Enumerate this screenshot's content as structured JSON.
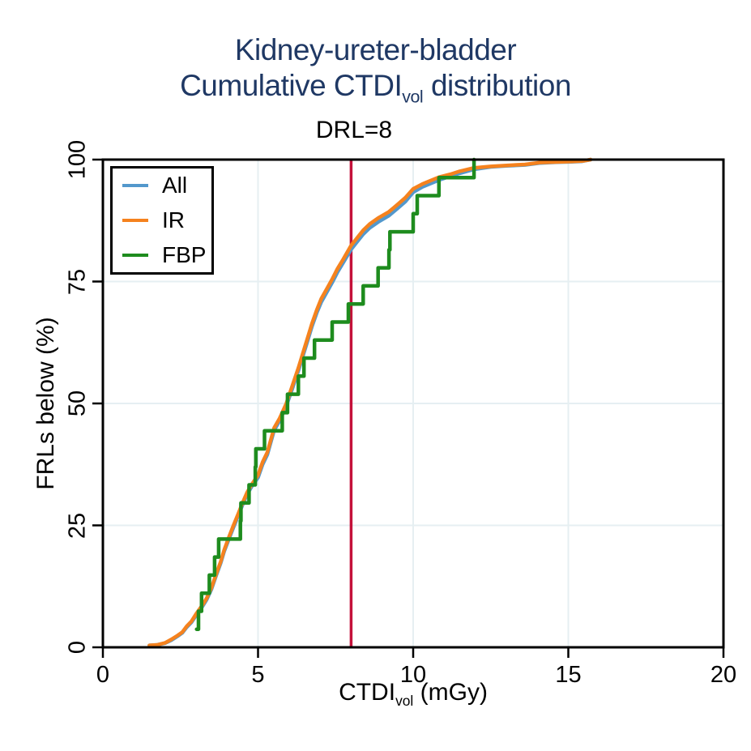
{
  "chart_data": {
    "type": "line",
    "title_line1": "Kidney-ureter-bladder",
    "title2_pre": "Cumulative CTDI",
    "title2_sub": "vol",
    "title2_post": " distribution",
    "ylabel": "FRLs below (%)",
    "xlabel_pre": "CTDI",
    "xlabel_sub": "vol",
    "xlabel_post": " (mGy)",
    "xlim": [
      0,
      20
    ],
    "ylim": [
      0,
      100
    ],
    "x_ticks": [
      0,
      5,
      10,
      15,
      20
    ],
    "y_ticks": [
      0,
      25,
      50,
      75,
      100
    ],
    "grid": true,
    "legend_position": "top-left",
    "reference_line": {
      "x": 8,
      "label": "DRL=8",
      "color": "#c4113a"
    },
    "colors": {
      "title": "#1f3864",
      "grid": "#e6eff2",
      "axis": "#000000",
      "all": "#5398cc",
      "ir": "#f5821e",
      "fbp": "#1e8c1e",
      "reference": "#c4113a"
    },
    "series": [
      {
        "name": "All",
        "color": "#5398cc",
        "style": "line",
        "points": [
          [
            1.5,
            0.4
          ],
          [
            1.75,
            0.5
          ],
          [
            2.0,
            0.85
          ],
          [
            2.2,
            1.45
          ],
          [
            2.4,
            2.25
          ],
          [
            2.56,
            2.95
          ],
          [
            2.7,
            4.1
          ],
          [
            2.85,
            5.1
          ],
          [
            3.0,
            6.5
          ],
          [
            3.2,
            8.3
          ],
          [
            3.34,
            9.7
          ],
          [
            3.5,
            11.9
          ],
          [
            3.65,
            14.7
          ],
          [
            3.8,
            17.3
          ],
          [
            3.91,
            19.7
          ],
          [
            4.05,
            22.0
          ],
          [
            4.21,
            24.6
          ],
          [
            4.35,
            26.8
          ],
          [
            4.5,
            29.2
          ],
          [
            4.65,
            31.4
          ],
          [
            4.8,
            33.0
          ],
          [
            5.0,
            34.8
          ],
          [
            5.15,
            37.5
          ],
          [
            5.3,
            39.5
          ],
          [
            5.52,
            44.5
          ],
          [
            5.7,
            46.5
          ],
          [
            5.91,
            49.5
          ],
          [
            6.1,
            52.9
          ],
          [
            6.3,
            56.7
          ],
          [
            6.43,
            59.4
          ],
          [
            6.6,
            62.9
          ],
          [
            6.74,
            65.8
          ],
          [
            6.9,
            68.7
          ],
          [
            7.04,
            70.8
          ],
          [
            7.26,
            73.3
          ],
          [
            7.4,
            74.9
          ],
          [
            7.56,
            76.9
          ],
          [
            7.75,
            78.9
          ],
          [
            8.0,
            81.6
          ],
          [
            8.2,
            83.2
          ],
          [
            8.39,
            84.7
          ],
          [
            8.6,
            86.0
          ],
          [
            8.87,
            87.2
          ],
          [
            9.22,
            88.5
          ],
          [
            9.5,
            90.0
          ],
          [
            9.75,
            91.4
          ],
          [
            10.0,
            93.3
          ],
          [
            10.3,
            94.4
          ],
          [
            10.6,
            95.2
          ],
          [
            10.83,
            95.8
          ],
          [
            11.2,
            96.6
          ],
          [
            11.5,
            97.2
          ],
          [
            11.96,
            98.0
          ],
          [
            12.5,
            98.5
          ],
          [
            13.0,
            98.7
          ],
          [
            13.6,
            98.9
          ],
          [
            14.1,
            99.3
          ],
          [
            14.6,
            99.45
          ],
          [
            15.1,
            99.55
          ],
          [
            15.45,
            99.65
          ],
          [
            15.72,
            100
          ]
        ]
      },
      {
        "name": "IR",
        "color": "#f5821e",
        "style": "line",
        "points": [
          [
            1.5,
            0.4
          ],
          [
            1.75,
            0.5
          ],
          [
            2.0,
            0.9
          ],
          [
            2.2,
            1.6
          ],
          [
            2.4,
            2.4
          ],
          [
            2.56,
            3.1
          ],
          [
            2.7,
            4.3
          ],
          [
            2.85,
            5.3
          ],
          [
            3.0,
            6.8
          ],
          [
            3.2,
            8.6
          ],
          [
            3.34,
            10.0
          ],
          [
            3.5,
            12.2
          ],
          [
            3.65,
            15.0
          ],
          [
            3.8,
            17.6
          ],
          [
            3.91,
            20.0
          ],
          [
            4.05,
            22.4
          ],
          [
            4.21,
            25.0
          ],
          [
            4.35,
            27.2
          ],
          [
            4.5,
            29.6
          ],
          [
            4.65,
            31.8
          ],
          [
            4.8,
            33.4
          ],
          [
            5.0,
            35.3
          ],
          [
            5.15,
            38.0
          ],
          [
            5.3,
            40.0
          ],
          [
            5.52,
            45.0
          ],
          [
            5.7,
            47.0
          ],
          [
            5.91,
            50.0
          ],
          [
            6.1,
            53.5
          ],
          [
            6.3,
            57.3
          ],
          [
            6.43,
            60.0
          ],
          [
            6.6,
            63.5
          ],
          [
            6.74,
            66.4
          ],
          [
            6.9,
            69.3
          ],
          [
            7.04,
            71.5
          ],
          [
            7.26,
            74.0
          ],
          [
            7.4,
            75.6
          ],
          [
            7.56,
            77.6
          ],
          [
            7.75,
            79.6
          ],
          [
            8.0,
            82.4
          ],
          [
            8.2,
            84.0
          ],
          [
            8.39,
            85.5
          ],
          [
            8.6,
            86.8
          ],
          [
            8.87,
            88.0
          ],
          [
            9.22,
            89.3
          ],
          [
            9.5,
            90.8
          ],
          [
            9.75,
            92.2
          ],
          [
            10.0,
            94.0
          ],
          [
            10.3,
            95.0
          ],
          [
            10.6,
            95.8
          ],
          [
            10.83,
            96.4
          ],
          [
            11.2,
            97.0
          ],
          [
            11.5,
            97.6
          ],
          [
            11.96,
            98.3
          ],
          [
            12.5,
            98.6
          ],
          [
            13.0,
            98.8
          ],
          [
            13.6,
            99.0
          ],
          [
            14.1,
            99.4
          ],
          [
            14.6,
            99.5
          ],
          [
            15.1,
            99.6
          ],
          [
            15.45,
            99.7
          ],
          [
            15.72,
            100
          ]
        ]
      },
      {
        "name": "FBP",
        "color": "#1e8c1e",
        "style": "step",
        "points": [
          [
            3.02,
            3.7
          ],
          [
            3.08,
            7.4
          ],
          [
            3.18,
            11.1
          ],
          [
            3.43,
            14.8
          ],
          [
            3.6,
            18.5
          ],
          [
            3.73,
            22.2
          ],
          [
            4.43,
            25.9
          ],
          [
            4.45,
            29.6
          ],
          [
            4.71,
            33.3
          ],
          [
            4.91,
            37.0
          ],
          [
            4.93,
            40.7
          ],
          [
            5.21,
            44.4
          ],
          [
            5.78,
            48.1
          ],
          [
            5.95,
            51.9
          ],
          [
            6.3,
            55.6
          ],
          [
            6.48,
            59.3
          ],
          [
            6.82,
            63.0
          ],
          [
            7.39,
            66.7
          ],
          [
            7.91,
            70.4
          ],
          [
            8.39,
            74.1
          ],
          [
            8.87,
            77.8
          ],
          [
            9.22,
            81.5
          ],
          [
            9.25,
            85.2
          ],
          [
            10.0,
            88.9
          ],
          [
            10.13,
            92.6
          ],
          [
            10.83,
            96.3
          ],
          [
            11.96,
            100
          ]
        ]
      }
    ]
  }
}
